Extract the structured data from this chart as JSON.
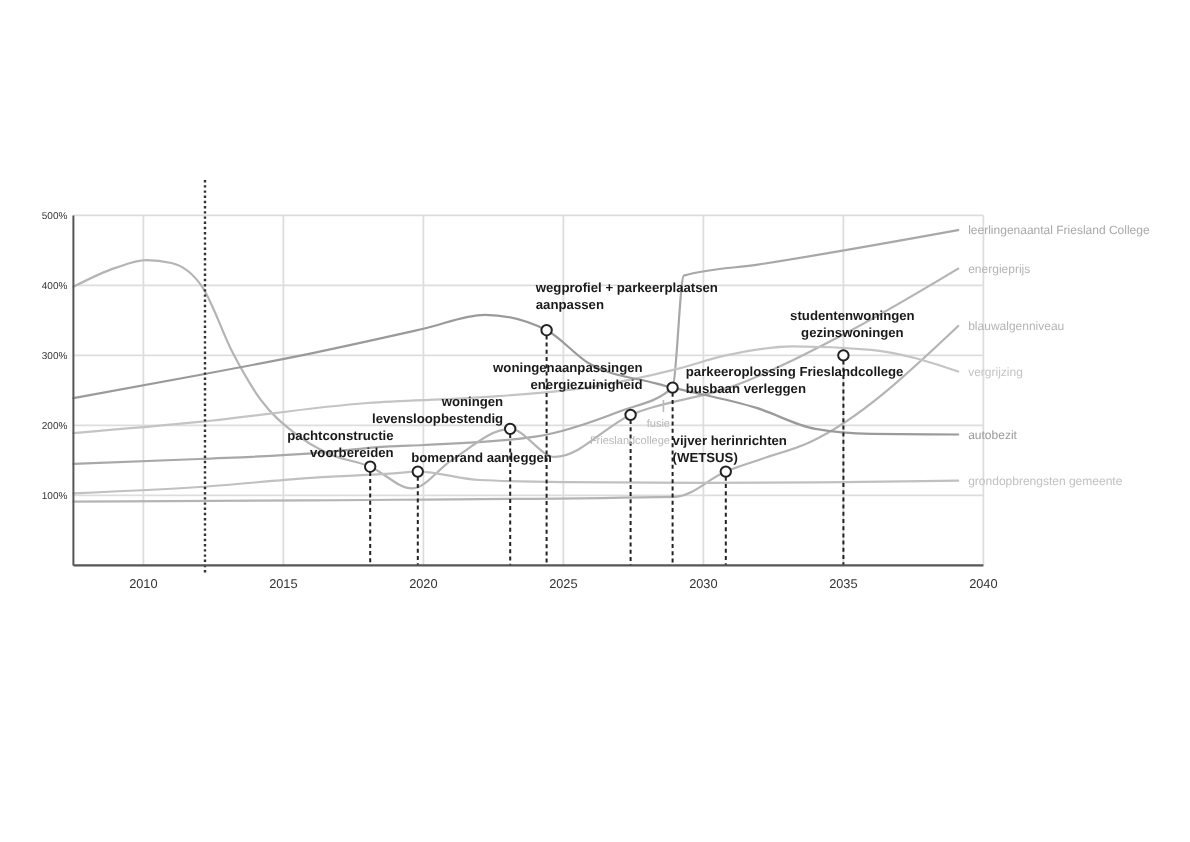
{
  "chart_data": {
    "type": "line",
    "xlim": [
      2007.5,
      2040
    ],
    "xticks": [
      2010,
      2015,
      2020,
      2025,
      2030,
      2035,
      2040
    ],
    "ylim": [
      0,
      500
    ],
    "yticks": [
      {
        "value": 100,
        "label": "100%"
      },
      {
        "value": 200,
        "label": "200%"
      },
      {
        "value": 300,
        "label": "300%"
      },
      {
        "value": 400,
        "label": "400%"
      },
      {
        "value": 500,
        "label": "500%"
      }
    ],
    "grid": true,
    "series": [
      {
        "name": "leerlingenaantal Friesland College",
        "color": "#a8a8a8",
        "x": [
          2007.5,
          2012,
          2016,
          2018.8,
          2020,
          2024,
          2027,
          2028.9,
          2029.3,
          2032,
          2039.1
        ],
        "values": [
          145,
          152,
          160,
          170,
          172,
          184,
          220,
          254,
          414,
          430,
          479
        ]
      },
      {
        "name": "energieprijs",
        "color": "#b4b4b4",
        "x": [
          2007.5,
          2009,
          2010.1,
          2011,
          2012.1,
          2013.2,
          2014.2,
          2015.4,
          2016.6,
          2018.1,
          2019.6,
          2021,
          2023.1,
          2024.7,
          2027.4,
          2031,
          2035,
          2039.1
        ],
        "values": [
          398,
          425,
          436,
          432,
          398,
          303,
          236,
          189,
          160,
          141,
          110,
          150,
          195,
          155,
          215,
          255,
          330,
          424
        ]
      },
      {
        "name": "blauwalgenniveau",
        "color": "#b4b4b4",
        "x": [
          2007.5,
          2016,
          2029,
          2030.8,
          2032,
          2033.8,
          2039.1
        ],
        "values": [
          91,
          93,
          98,
          134,
          151,
          176,
          342
        ]
      },
      {
        "name": "vergrijzing",
        "color": "#c4c4c4",
        "x": [
          2007.5,
          2012,
          2018,
          2022,
          2026,
          2029,
          2030.8,
          2033.2,
          2036,
          2039.1
        ],
        "values": [
          189,
          205,
          232,
          240,
          255,
          280,
          300,
          313,
          308,
          277
        ]
      },
      {
        "name": "autobezit",
        "color": "#9a9a9a",
        "x": [
          2007.5,
          2012,
          2016,
          2020,
          2022.2,
          2024.4,
          2025.9,
          2028.3,
          2031.9,
          2034,
          2036,
          2039.1
        ],
        "values": [
          239,
          272,
          303,
          338,
          358,
          336,
          289,
          260,
          225,
          195,
          188,
          187
        ]
      },
      {
        "name": "grondopbrengsten gemeente",
        "color": "#c0c0c0",
        "x": [
          2007.5,
          2012,
          2016,
          2018.8,
          2019.8,
          2022,
          2025,
          2030,
          2035,
          2039.1
        ],
        "values": [
          103,
          112,
          125,
          131,
          134,
          122,
          119,
          118,
          119,
          121
        ]
      },
      {
        "type": "lollipop",
        "color": "#222222",
        "line_style": "dashed",
        "x": [
          2018.1,
          2019.8,
          2023.1,
          2024.4,
          2027.4,
          2028.9,
          2030.8,
          2035
        ],
        "values": [
          141,
          134,
          195,
          336,
          215,
          254,
          134,
          300
        ]
      }
    ],
    "ref_lines": [
      {
        "axis": "x",
        "value": 2012.2,
        "line_style": "dotted",
        "color": "#333333"
      }
    ],
    "annotations": [
      {
        "text": "pachtconstructie\nvoorbereiden",
        "x": 2018.1,
        "y": 141
      },
      {
        "text": "bomenrand aanleggen",
        "x": 2019.8,
        "y": 134
      },
      {
        "text": "woningen\nlevensloopbestendig",
        "x": 2023.1,
        "y": 195
      },
      {
        "text": "wegprofiel + parkeerplaatsen\naanpassen",
        "x": 2024.4,
        "y": 336
      },
      {
        "text": "woningenaanpassingen\nenergiezuinigheid",
        "x": 2027.4,
        "y": 215
      },
      {
        "text": "parkeeroplossing Frieslandcollege\nbusbaan verleggen",
        "x": 2028.9,
        "y": 254
      },
      {
        "text": "vijver herinrichten\n(WETSUS)",
        "x": 2030.8,
        "y": 134
      },
      {
        "text": "studentenwoningen\ngezinswoningen",
        "x": 2035,
        "y": 300
      },
      "fusie\nFrieslandcollege"
    ]
  }
}
